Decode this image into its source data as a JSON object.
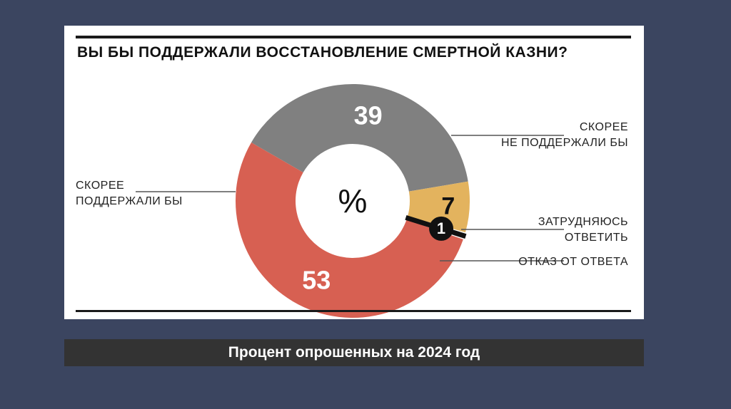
{
  "chart_data": {
    "type": "pie",
    "title": "ВЫ БЫ ПОДДЕРЖАЛИ ВОССТАНОВЛЕНИЕ СМЕРТНОЙ КАЗНИ?",
    "center_label": "%",
    "slices": [
      {
        "label": [
          "СКОРЕЕ",
          "НЕ ПОДДЕРЖАЛИ БЫ"
        ],
        "value": 39,
        "value_label": "39",
        "color": "#808080"
      },
      {
        "label": [
          "ЗАТРУДНЯЮСЬ",
          "ОТВЕТИТЬ"
        ],
        "value": 7,
        "value_label": "7",
        "color": "#e3b35e"
      },
      {
        "label": [
          "ОТКАЗ ОТ ОТВЕТА"
        ],
        "value": 1,
        "value_label": "1",
        "color": "#111111"
      },
      {
        "label": [
          "СКОРЕЕ",
          "ПОДДЕРЖАЛИ БЫ"
        ],
        "value": 53,
        "value_label": "53",
        "color": "#d76052"
      }
    ]
  },
  "caption": "Процент опрошенных на 2024 год"
}
